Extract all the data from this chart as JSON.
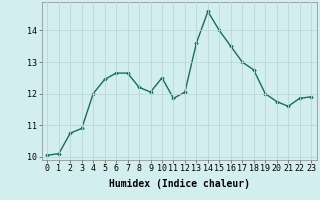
{
  "x": [
    0,
    1,
    2,
    3,
    4,
    5,
    6,
    7,
    8,
    9,
    10,
    11,
    12,
    13,
    14,
    15,
    16,
    17,
    18,
    19,
    20,
    21,
    22,
    23
  ],
  "y": [
    10.05,
    10.1,
    10.75,
    10.9,
    12.0,
    12.45,
    12.65,
    12.65,
    12.2,
    12.05,
    12.5,
    11.85,
    12.05,
    13.6,
    14.6,
    14.0,
    13.5,
    13.0,
    12.75,
    12.0,
    11.75,
    11.6,
    11.85,
    11.9
  ],
  "line_color": "#1a6b62",
  "marker": "D",
  "marker_size": 1.8,
  "line_width": 1.0,
  "bg_color": "#d2eeee",
  "grid_color": "#b8d8d8",
  "xlabel": "Humidex (Indice chaleur)",
  "xlabel_fontsize": 7,
  "tick_fontsize": 6,
  "ylim": [
    9.9,
    14.9
  ],
  "xlim": [
    -0.5,
    23.5
  ],
  "yticks": [
    10,
    11,
    12,
    13,
    14
  ],
  "xticks": [
    0,
    1,
    2,
    3,
    4,
    5,
    6,
    7,
    8,
    9,
    10,
    11,
    12,
    13,
    14,
    15,
    16,
    17,
    18,
    19,
    20,
    21,
    22,
    23
  ]
}
